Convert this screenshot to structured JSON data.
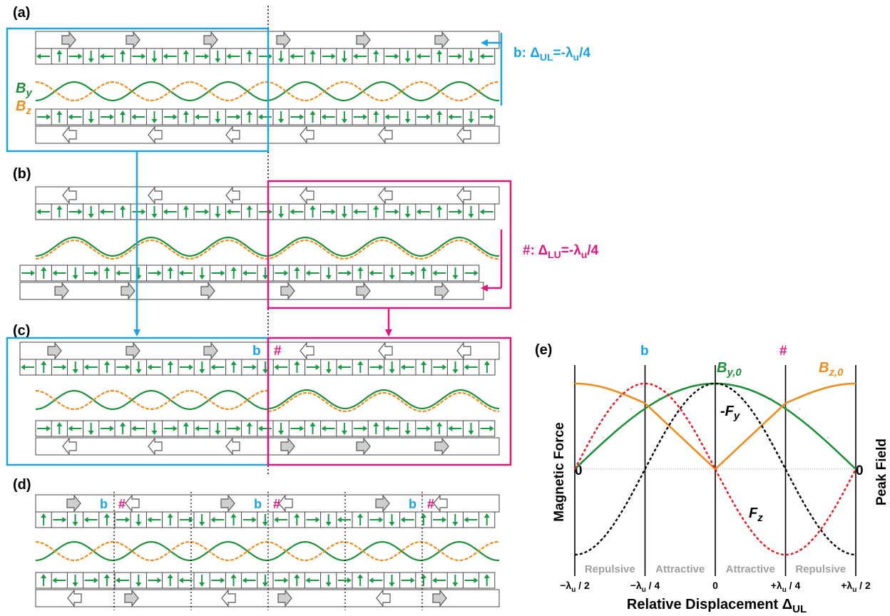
{
  "panels": {
    "a": {
      "label": "(a)",
      "by_label": "B",
      "by_sub": "y",
      "bz_label": "B",
      "bz_sub": "z"
    },
    "b": {
      "label": "(b)"
    },
    "c": {
      "label": "(c)"
    },
    "d": {
      "label": "(d)"
    },
    "e": {
      "label": "(e)"
    }
  },
  "annotations": {
    "b_shift_prefix": "b: Δ",
    "b_shift_sub": "UL",
    "b_shift_suffix": "=-λ",
    "b_shift_sub2": "u",
    "b_shift_tail": "/4",
    "hash_shift_prefix": "#: Δ",
    "hash_shift_sub": "LU",
    "hash_shift_suffix": "=-λ",
    "hash_shift_sub2": "u",
    "hash_shift_tail": "/4",
    "b": "b",
    "hash": "#"
  },
  "colors": {
    "cyan": "#1aa3e3",
    "magenta": "#e0157e",
    "green": "#1e8f3a",
    "orange": "#f08c1e",
    "red": "#e8161b",
    "arrow_green": "#1a9a45",
    "gray_arrow": "#cfcfcf",
    "black": "#000000"
  },
  "chart_data": {
    "type": "line",
    "ylabel_left": "Magnetic Force",
    "ylabel_right": "Peak Field",
    "xlabel": "Relative Displacement Δ",
    "xlabel_sub": "UL",
    "x_ticks": [
      "−λ",
      "−λ",
      "0",
      "+λ",
      "+λ"
    ],
    "x_tick_tails": [
      " / 2",
      " / 4",
      "",
      " / 4",
      " / 2"
    ],
    "x_tick_values": [
      -0.5,
      -0.25,
      0,
      0.25,
      0.5
    ],
    "left_zero": "0",
    "right_zero": "0",
    "top_markers": [
      "b",
      "#"
    ],
    "regions": [
      "Repulsive",
      "Attractive",
      "Attractive",
      "Repulsive"
    ],
    "x_range": [
      -0.5,
      0.5
    ],
    "y_range": [
      -1,
      1
    ],
    "series": [
      {
        "name": "B",
        "sub": "y,0",
        "style": "solid",
        "color": "#1e8f3a",
        "x": [
          -0.5,
          -0.4,
          -0.3,
          -0.25,
          -0.2,
          -0.1,
          0,
          0.1,
          0.2,
          0.25,
          0.3,
          0.4,
          0.5
        ],
        "y": [
          0,
          0.37,
          0.7,
          0.77,
          0.83,
          0.95,
          1.0,
          0.95,
          0.83,
          0.77,
          0.7,
          0.37,
          0
        ]
      },
      {
        "name": "B",
        "sub": "z,0",
        "style": "solid",
        "color": "#f08c1e",
        "x": [
          -0.5,
          -0.4,
          -0.3,
          -0.25,
          -0.2,
          -0.1,
          0,
          0.1,
          0.2,
          0.25,
          0.3,
          0.4,
          0.5
        ],
        "y": [
          1.0,
          0.95,
          0.83,
          0.77,
          0.6,
          0.3,
          0,
          0.3,
          0.6,
          0.77,
          0.83,
          0.95,
          1.0
        ]
      },
      {
        "name": "-F",
        "sub": "y",
        "style": "dashed",
        "color": "#000000",
        "x": [
          -0.5,
          -0.4,
          -0.3,
          -0.25,
          -0.2,
          -0.1,
          0,
          0.1,
          0.2,
          0.25,
          0.3,
          0.4,
          0.5
        ],
        "y": [
          -1.0,
          -0.81,
          -0.31,
          0,
          0.31,
          0.81,
          1.0,
          0.81,
          0.31,
          0,
          -0.31,
          -0.81,
          -1.0
        ]
      },
      {
        "name": "F",
        "sub": "z",
        "style": "dashed",
        "color": "#e8161b",
        "x": [
          -0.5,
          -0.4,
          -0.3,
          -0.25,
          -0.2,
          -0.1,
          0,
          0.1,
          0.2,
          0.25,
          0.3,
          0.4,
          0.5
        ],
        "y": [
          0,
          0.59,
          0.95,
          1.0,
          0.95,
          0.59,
          0,
          -0.59,
          -0.95,
          -1.0,
          -0.95,
          -0.59,
          0
        ]
      }
    ]
  }
}
